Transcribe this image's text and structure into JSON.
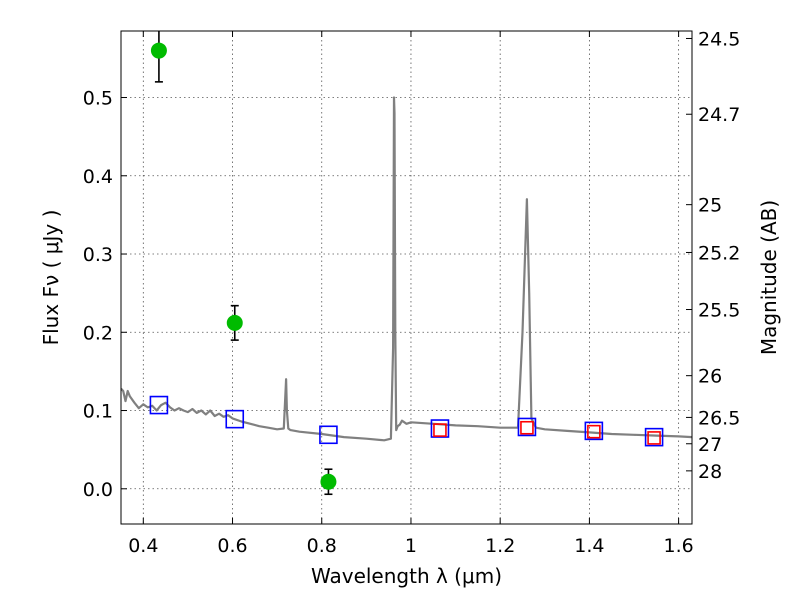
{
  "chart_data": {
    "type": "scatter",
    "title": "",
    "xlabel": "Wavelength  λ (μm)",
    "ylabel": "Flux  Fν  ( μJy )",
    "y2label": "Magnitude (AB)",
    "xlim": [
      0.35,
      1.63
    ],
    "ylim": [
      -0.045,
      0.585
    ],
    "grid": true,
    "x_ticks": [
      {
        "value": 0.4,
        "label": "0.4"
      },
      {
        "value": 0.6,
        "label": "0.6"
      },
      {
        "value": 0.8,
        "label": "0.8"
      },
      {
        "value": 1.0,
        "label": "1"
      },
      {
        "value": 1.2,
        "label": "1.2"
      },
      {
        "value": 1.4,
        "label": "1.4"
      },
      {
        "value": 1.6,
        "label": "1.6"
      }
    ],
    "y_ticks": [
      {
        "value": 0.0,
        "label": "0.0"
      },
      {
        "value": 0.1,
        "label": "0.1"
      },
      {
        "value": 0.2,
        "label": "0.2"
      },
      {
        "value": 0.3,
        "label": "0.3"
      },
      {
        "value": 0.4,
        "label": "0.4"
      },
      {
        "value": 0.5,
        "label": "0.5"
      }
    ],
    "y2_ticks": [
      {
        "mag": 24.5,
        "label": "24.5"
      },
      {
        "mag": 24.7,
        "label": "24.7"
      },
      {
        "mag": 25.0,
        "label": "25"
      },
      {
        "mag": 25.2,
        "label": "25.2"
      },
      {
        "mag": 25.5,
        "label": "25.5"
      },
      {
        "mag": 26.0,
        "label": "26"
      },
      {
        "mag": 26.5,
        "label": "26.5"
      },
      {
        "mag": 27.0,
        "label": "27"
      },
      {
        "mag": 28.0,
        "label": "28"
      }
    ],
    "series": [
      {
        "kind": "line",
        "color": "#808080",
        "x": [
          0.35,
          0.355,
          0.36,
          0.365,
          0.37,
          0.38,
          0.39,
          0.4,
          0.41,
          0.42,
          0.43,
          0.44,
          0.45,
          0.46,
          0.47,
          0.48,
          0.49,
          0.5,
          0.51,
          0.52,
          0.53,
          0.54,
          0.55,
          0.56,
          0.57,
          0.58,
          0.59,
          0.6,
          0.62,
          0.64,
          0.66,
          0.68,
          0.7,
          0.715,
          0.72,
          0.722,
          0.725,
          0.73,
          0.75,
          0.8,
          0.85,
          0.9,
          0.94,
          0.955,
          0.96,
          0.962,
          0.963,
          0.965,
          0.967,
          0.97,
          0.975,
          0.98,
          0.99,
          1.0,
          1.05,
          1.1,
          1.15,
          1.2,
          1.24,
          1.25,
          1.26,
          1.265,
          1.27,
          1.28,
          1.3,
          1.35,
          1.4,
          1.45,
          1.5,
          1.55,
          1.6,
          1.63
        ],
        "y": [
          0.128,
          0.125,
          0.112,
          0.125,
          0.118,
          0.11,
          0.103,
          0.108,
          0.104,
          0.106,
          0.1,
          0.107,
          0.11,
          0.104,
          0.1,
          0.103,
          0.1,
          0.098,
          0.102,
          0.097,
          0.1,
          0.095,
          0.1,
          0.093,
          0.096,
          0.092,
          0.094,
          0.09,
          0.086,
          0.083,
          0.08,
          0.078,
          0.076,
          0.077,
          0.14,
          0.1,
          0.077,
          0.075,
          0.073,
          0.07,
          0.066,
          0.064,
          0.062,
          0.064,
          0.18,
          0.5,
          0.48,
          0.2,
          0.075,
          0.08,
          0.082,
          0.087,
          0.083,
          0.085,
          0.083,
          0.081,
          0.08,
          0.078,
          0.078,
          0.2,
          0.37,
          0.25,
          0.09,
          0.078,
          0.076,
          0.074,
          0.072,
          0.07,
          0.069,
          0.068,
          0.067,
          0.066
        ]
      },
      {
        "kind": "points",
        "name": "",
        "color": "#00bb00",
        "x": [
          0.435,
          0.605,
          0.815
        ],
        "y": [
          0.56,
          0.212,
          0.009
        ],
        "yerr": [
          0.04,
          0.022,
          0.016
        ]
      },
      {
        "kind": "squares",
        "color": "#0000ff",
        "x": [
          0.435,
          0.605,
          0.815,
          1.065,
          1.26,
          1.41,
          1.545
        ],
        "y": [
          0.107,
          0.089,
          0.069,
          0.077,
          0.079,
          0.074,
          0.066
        ]
      },
      {
        "kind": "squares",
        "color": "#ff0000",
        "x": [
          1.065,
          1.26,
          1.41,
          1.545
        ],
        "y": [
          0.075,
          0.078,
          0.073,
          0.065
        ]
      }
    ]
  }
}
